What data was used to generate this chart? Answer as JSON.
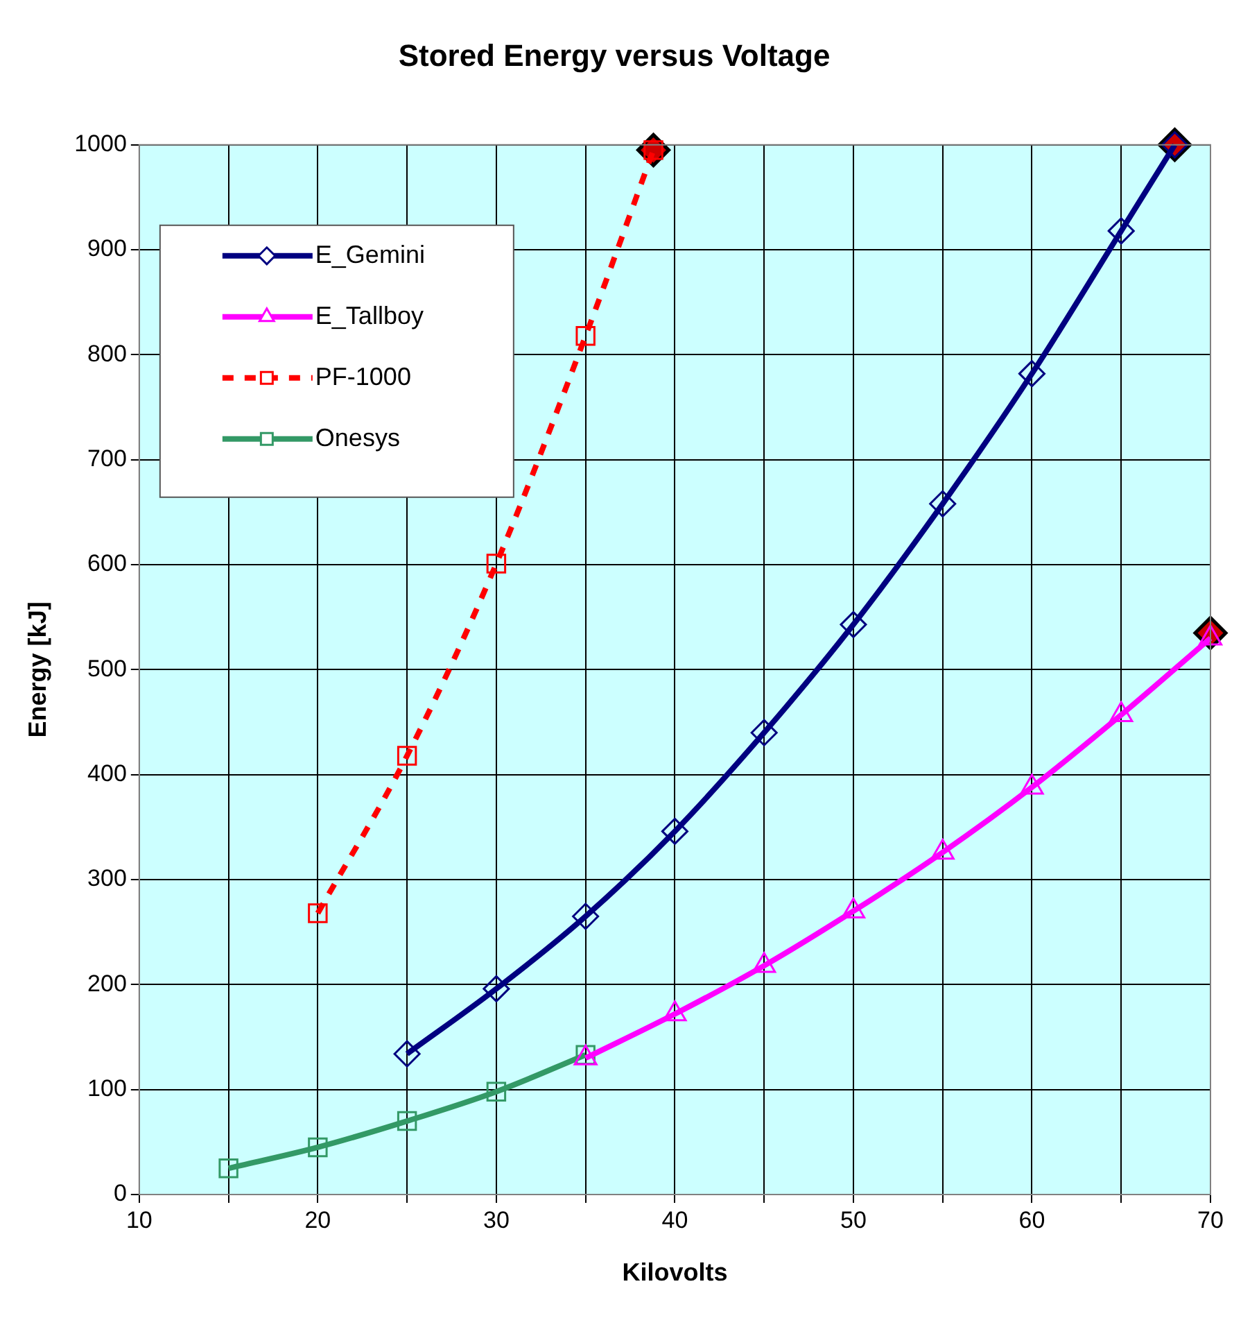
{
  "chart_data": {
    "type": "line",
    "title": "Stored Energy versus Voltage",
    "xlabel": "Kilovolts",
    "ylabel": "Energy [kJ]",
    "xlim": [
      10,
      70
    ],
    "xticks": [
      10,
      {
        "value": 15,
        "label": null
      },
      20,
      {
        "value": 25,
        "label": null
      },
      30,
      {
        "value": 35,
        "label": null
      },
      40,
      {
        "value": 45,
        "label": null
      },
      50,
      {
        "value": 55,
        "label": null
      },
      60,
      {
        "value": 65,
        "label": null
      },
      70
    ],
    "ylim": [
      0,
      1000
    ],
    "yticks": [
      0,
      100,
      200,
      300,
      400,
      500,
      600,
      700,
      800,
      900,
      1000
    ],
    "grid": true,
    "legend": "top left",
    "series": [
      {
        "name": "E_Gemini",
        "color": "#000080",
        "marker": "diamond",
        "line_style": "solid",
        "x": [
          25,
          30,
          35,
          40,
          45,
          50,
          55,
          60,
          65,
          68
        ],
        "values": [
          134,
          196,
          265,
          346,
          440,
          543,
          658,
          782,
          918,
          1000
        ]
      },
      {
        "name": "E_Tallboy",
        "color": "#ff00ff",
        "marker": "triangle",
        "line_style": "solid",
        "x": [
          35,
          40,
          45,
          50,
          55,
          60,
          65,
          70
        ],
        "values": [
          130,
          172,
          218,
          270,
          326,
          388,
          457,
          530
        ]
      },
      {
        "name": "PF-1000",
        "color": "#ff0000",
        "marker": "square",
        "line_style": "dashed",
        "x": [
          20,
          25,
          30,
          35,
          38.8
        ],
        "values": [
          268,
          418,
          601,
          818,
          995
        ]
      },
      {
        "name": "Onesys",
        "color": "#339966",
        "marker": "square",
        "line_style": "solid",
        "x": [
          15,
          20,
          25,
          30,
          35
        ],
        "values": [
          25,
          45,
          70,
          98,
          133
        ]
      },
      {
        "type": "scatter",
        "color": "#cc0000",
        "marker": "diamond",
        "x": [
          38.8,
          68,
          70
        ],
        "values": [
          995,
          1000,
          535
        ]
      }
    ]
  }
}
